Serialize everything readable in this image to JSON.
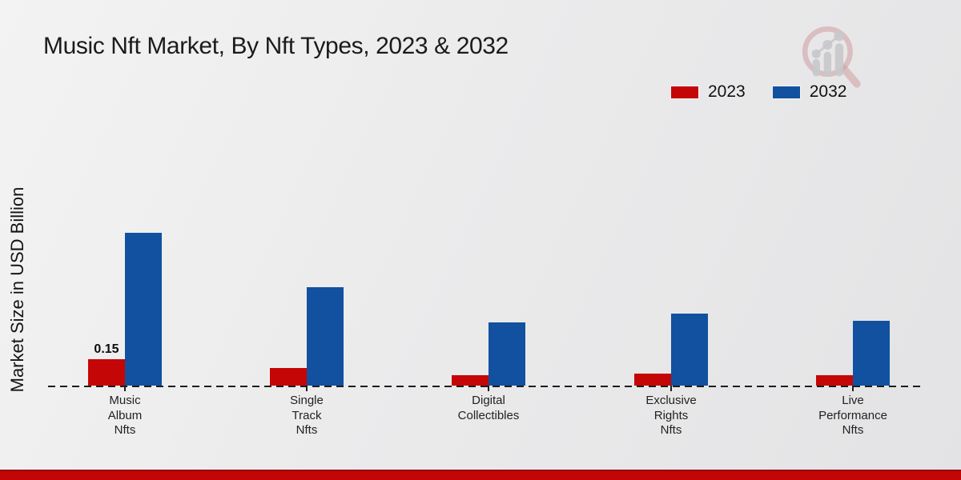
{
  "chart_data": {
    "type": "bar",
    "title": "Music Nft Market, By Nft Types, 2023 & 2032",
    "ylabel": "Market Size in USD Billion",
    "xlabel": "",
    "categories": [
      "Music Album Nfts",
      "Single Track Nfts",
      "Digital Collectibles",
      "Exclusive Rights Nfts",
      "Live Performance Nfts"
    ],
    "series": [
      {
        "name": "2023",
        "color": "#c50606",
        "values": [
          0.15,
          0.1,
          0.06,
          0.07,
          0.06
        ]
      },
      {
        "name": "2032",
        "color": "#11519f",
        "values": [
          0.87,
          0.56,
          0.36,
          0.41,
          0.37
        ]
      }
    ],
    "annotations": [
      {
        "series": "2023",
        "category": "Music Album Nfts",
        "text": "0.15"
      }
    ],
    "ylim": [
      0,
      1
    ],
    "grid": false,
    "baseline_style": "dashed",
    "legend_position": "top-right",
    "units": "USD Billion"
  },
  "watermark": {
    "name": "magnifier-growth-chart-logo",
    "ring_color": "#cb8e93",
    "bar_color": "#c2c2c7"
  },
  "footer_bar": {
    "color": "#c30505",
    "border_color": "#8e1010"
  }
}
